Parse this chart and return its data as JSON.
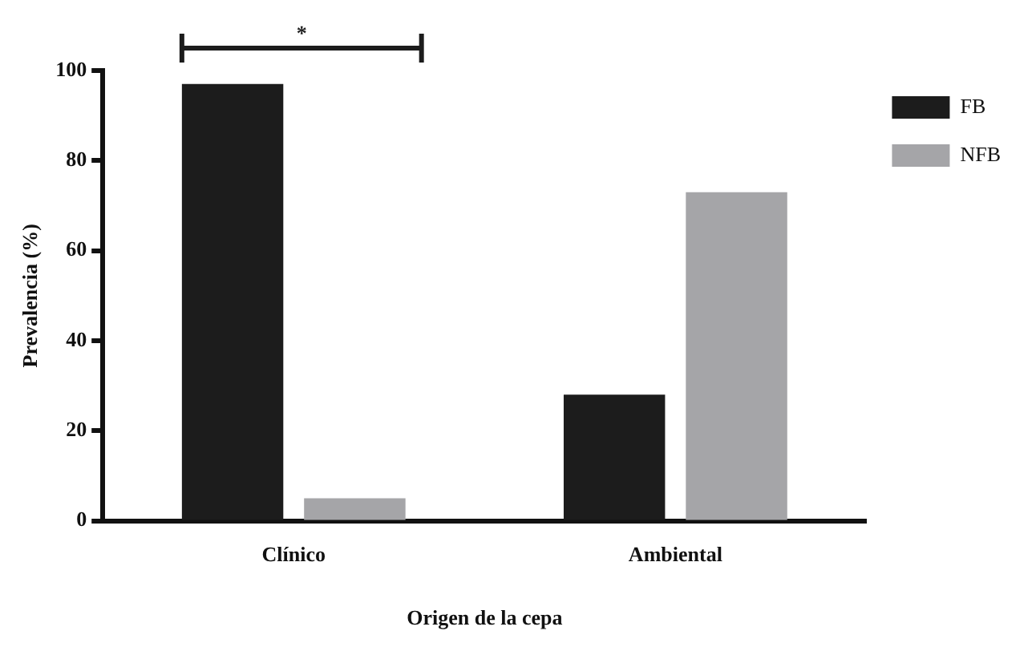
{
  "chart_data": {
    "type": "bar",
    "xlabel": "Origen de la cepa",
    "ylabel": "Prevalencia (%)",
    "categories": [
      "Clínico",
      "Ambiental"
    ],
    "series": [
      {
        "name": "FB",
        "color": "#1c1c1c",
        "values": [
          97,
          28
        ]
      },
      {
        "name": "NFB",
        "color": "#a5a5a8",
        "values": [
          5,
          73
        ]
      }
    ],
    "ylim": [
      0,
      100
    ],
    "yticks": [
      0,
      20,
      40,
      60,
      80,
      100
    ],
    "grid": false,
    "legend": "top right",
    "annotations": [
      "*"
    ]
  }
}
